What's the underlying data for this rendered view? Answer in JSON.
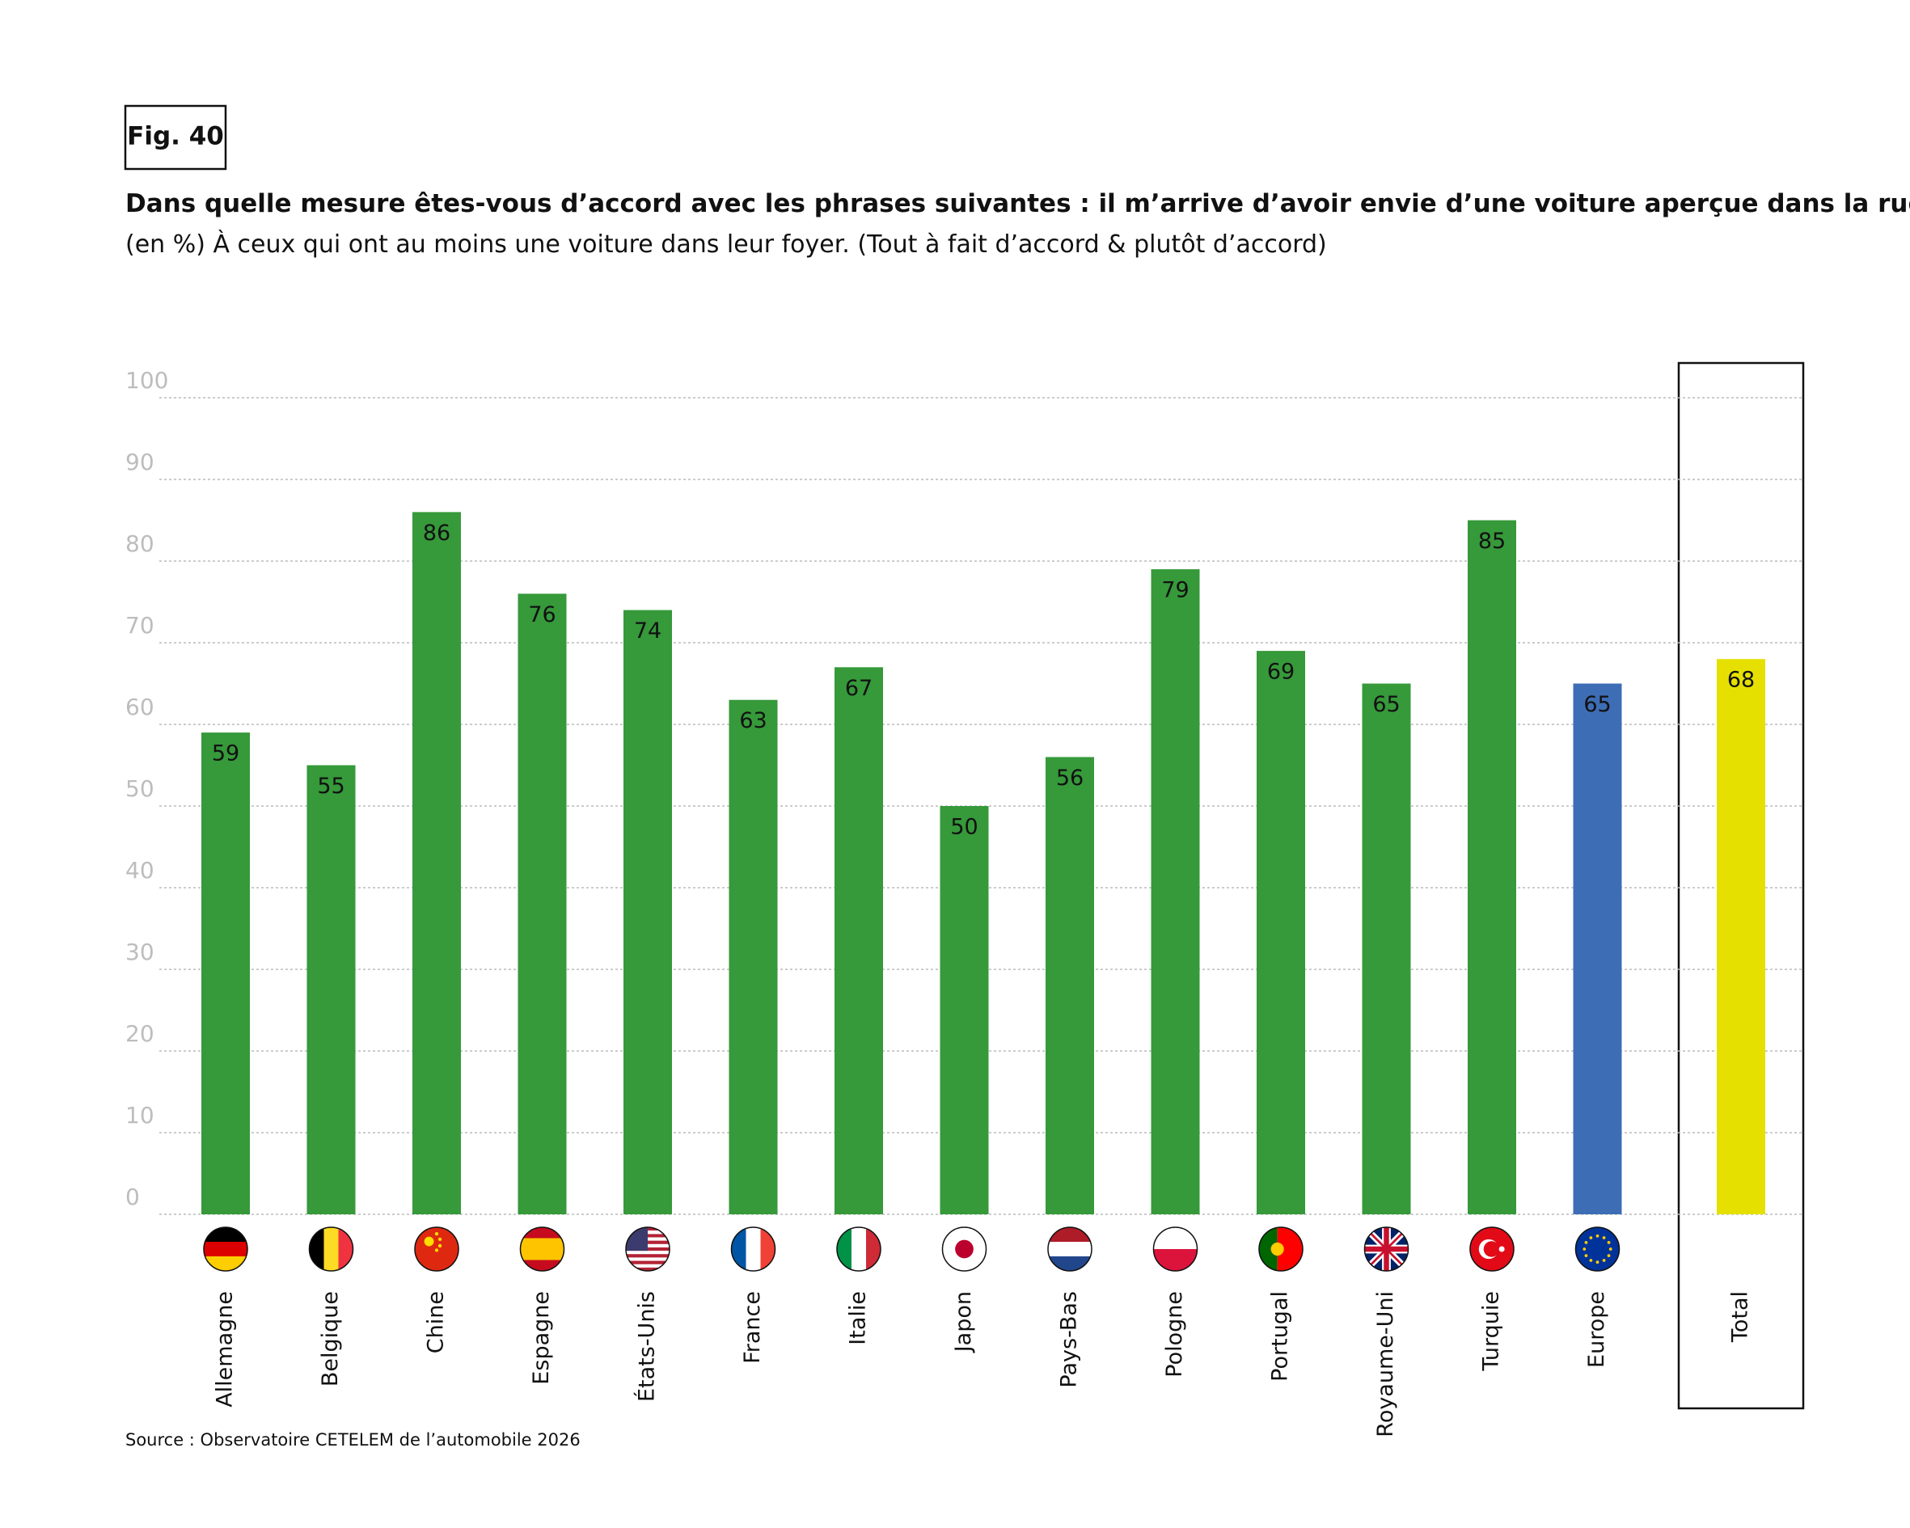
{
  "chart_data": {
    "type": "bar",
    "figure_label": "Fig. 40",
    "title": "Dans quelle mesure êtes-vous d’accord avec les phrases suivantes : il m’arrive d’avoir envie d’une voiture aperçue dans la rue.",
    "subtitle": "(en %) À ceux qui ont au moins une voiture dans leur foyer. (Tout à fait d’accord & plutôt d’accord)",
    "source": "Source : Observatoire CETELEM de l’automobile 2026",
    "categories": [
      "Allemagne",
      "Belgique",
      "Chine",
      "Espagne",
      "États-Unis",
      "France",
      "Italie",
      "Japon",
      "Pays-Bas",
      "Pologne",
      "Portugal",
      "Royaume-Uni",
      "Turquie",
      "Europe",
      "Total"
    ],
    "values": [
      59,
      55,
      86,
      76,
      74,
      63,
      67,
      50,
      56,
      79,
      69,
      65,
      85,
      65,
      68
    ],
    "colors": [
      "#36993a",
      "#36993a",
      "#36993a",
      "#36993a",
      "#36993a",
      "#36993a",
      "#36993a",
      "#36993a",
      "#36993a",
      "#36993a",
      "#36993a",
      "#36993a",
      "#36993a",
      "#3d6db5",
      "#e6e000"
    ],
    "ylim": [
      0,
      100
    ],
    "yticks": [
      0,
      10,
      20,
      30,
      40,
      50,
      60,
      70,
      80,
      90,
      100
    ],
    "grid": true
  }
}
